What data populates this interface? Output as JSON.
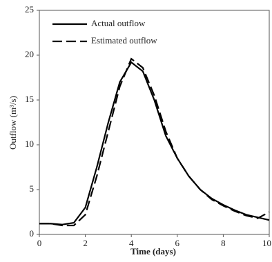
{
  "chart_data": {
    "type": "line",
    "xlabel": "Time (days)",
    "ylabel": "Outflow (m³/s)",
    "x": [
      0,
      0.5,
      1,
      1.5,
      2,
      2.5,
      3,
      3.5,
      4,
      4.5,
      5,
      5.5,
      6,
      6.5,
      7,
      7.5,
      8,
      8.5,
      9,
      9.5,
      10
    ],
    "series": [
      {
        "name": "Actual outflow",
        "color": "#000000",
        "dash": false,
        "values": [
          1.2,
          1.2,
          1.1,
          1.3,
          3.0,
          7.5,
          12.5,
          17.0,
          19.2,
          18.2,
          15.0,
          11.0,
          8.5,
          6.5,
          5.0,
          4.0,
          3.3,
          2.7,
          2.2,
          1.9,
          1.6
        ]
      },
      {
        "name": "Estimated outflow",
        "color": "#000000",
        "dash": true,
        "values": [
          1.2,
          1.2,
          1.0,
          1.0,
          2.2,
          6.5,
          11.5,
          16.5,
          19.6,
          18.6,
          15.5,
          11.5,
          8.5,
          6.5,
          5.0,
          3.9,
          3.2,
          2.6,
          2.1,
          1.8,
          2.5
        ]
      }
    ],
    "xlim": [
      0,
      10
    ],
    "xticks": [
      0,
      2,
      4,
      6,
      8,
      10
    ],
    "ylim": [
      0,
      25
    ],
    "yticks": [
      0,
      5,
      10,
      15,
      20,
      25
    ],
    "legend": "upper left"
  }
}
